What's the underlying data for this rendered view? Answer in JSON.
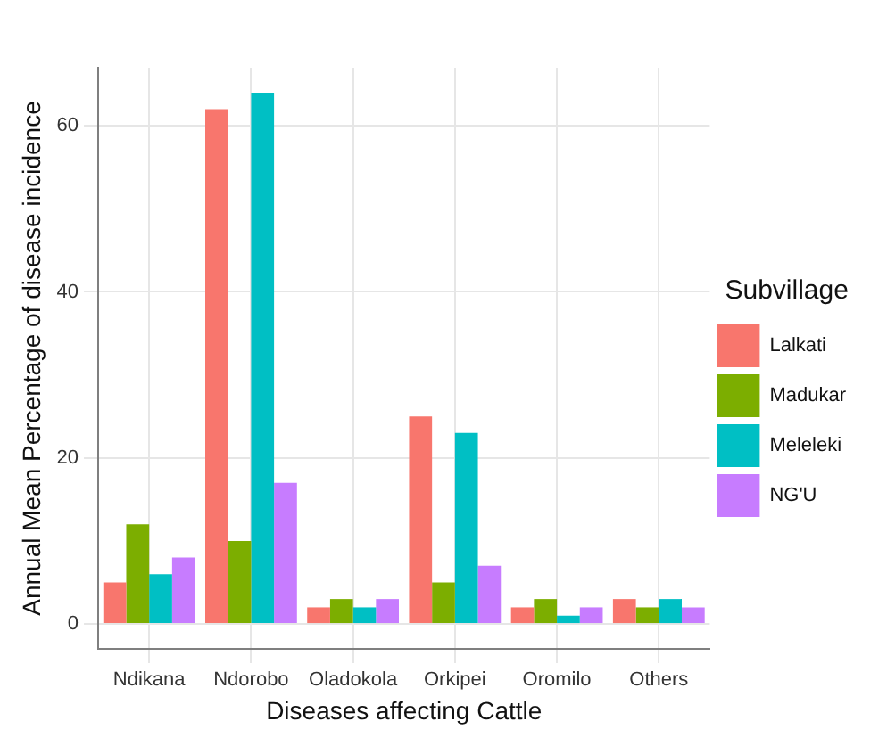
{
  "chart_data": {
    "type": "bar",
    "xlabel": "Diseases affecting Cattle",
    "ylabel": "Annual Mean Percentage of disease incidence",
    "legend_title": "Subvillage",
    "legend": "right",
    "categories": [
      "Ndikana",
      "Ndorobo",
      "Oladokola",
      "Orkipei",
      "Oromilo",
      "Others"
    ],
    "series": [
      {
        "name": "Lalkati",
        "color": "#f8766d",
        "values": [
          5,
          62,
          2,
          25,
          2,
          3
        ]
      },
      {
        "name": "Madukar",
        "color": "#7cae00",
        "values": [
          12,
          10,
          3,
          5,
          3,
          2
        ]
      },
      {
        "name": "Meleleki",
        "color": "#00bfc4",
        "values": [
          6,
          64,
          2,
          23,
          1,
          3
        ]
      },
      {
        "name": "NG'U",
        "color": "#c77cff",
        "values": [
          8,
          17,
          3,
          7,
          2,
          2
        ]
      }
    ],
    "ylim": [
      -3,
      67
    ],
    "yticks": [
      0,
      20,
      40,
      60
    ],
    "grid": true
  }
}
